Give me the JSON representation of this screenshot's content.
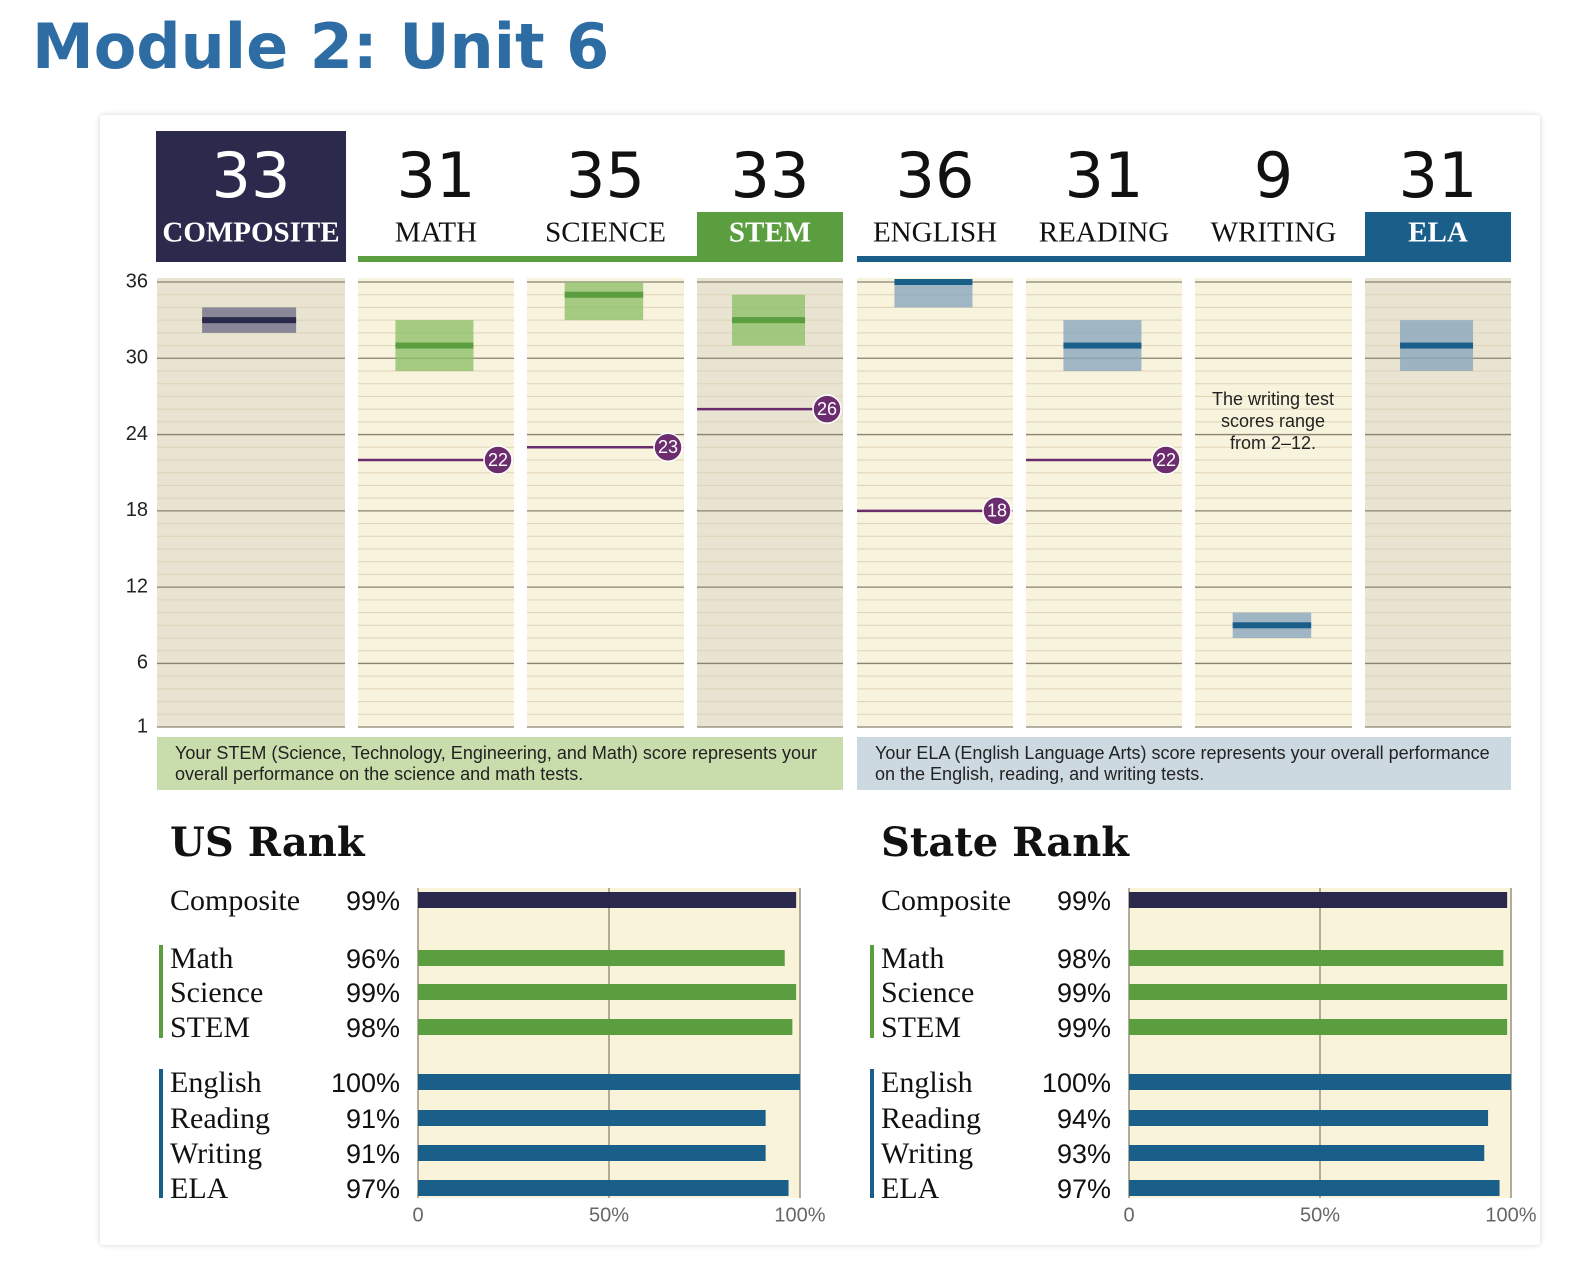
{
  "title": "Module 2: Unit 6",
  "chart_data": [
    {
      "type": "score-range",
      "categories": [
        "COMPOSITE",
        "MATH",
        "SCIENCE",
        "STEM",
        "ENGLISH",
        "READING",
        "WRITING",
        "ELA"
      ],
      "scores": [
        33,
        31,
        35,
        33,
        36,
        31,
        9,
        31
      ],
      "low": [
        32,
        29,
        33,
        31,
        34,
        29,
        8,
        29
      ],
      "high": [
        34,
        33,
        36,
        35,
        36,
        33,
        10,
        33
      ],
      "benchmarks": [
        null,
        22,
        23,
        26,
        18,
        22,
        null,
        null
      ],
      "colors": [
        "#2b2a4c",
        "#5a9e3f",
        "#5a9e3f",
        "#5a9e3f",
        "#1a5e8a",
        "#1a5e8a",
        "#1a5e8a",
        "#1a5e8a"
      ],
      "band_colors": [
        "#6f6e88",
        "#8fc06a",
        "#8fc06a",
        "#8fc06a",
        "#8aa6be",
        "#8aa6be",
        "#8aa6be",
        "#8aa6be"
      ],
      "highlight": [
        true,
        false,
        false,
        true,
        false,
        false,
        false,
        true
      ],
      "benchmark_color": "#6b2d6e",
      "ylim": [
        1,
        36
      ],
      "yticks": [
        1,
        6,
        12,
        18,
        24,
        30,
        36
      ],
      "annotation": "The writing test scores range from 2–12.",
      "notes": [
        "Your STEM (Science, Technology, Engineering, and Math) score represents your overall performance on the science and math tests.",
        "Your ELA (English Language Arts) score represents your overall performance on the English, reading, and writing tests."
      ]
    },
    {
      "type": "bar",
      "orientation": "horizontal",
      "title": "US Rank",
      "categories": [
        "Composite",
        "Math",
        "Science",
        "STEM",
        "English",
        "Reading",
        "Writing",
        "ELA"
      ],
      "values": [
        99,
        96,
        99,
        98,
        100,
        91,
        91,
        97
      ],
      "value_labels": [
        "99%",
        "96%",
        "99%",
        "98%",
        "100%",
        "91%",
        "91%",
        "97%"
      ],
      "colors": [
        "#2b2a4c",
        "#5a9e3f",
        "#5a9e3f",
        "#5a9e3f",
        "#1a5e8a",
        "#1a5e8a",
        "#1a5e8a",
        "#1a5e8a"
      ],
      "xlim": [
        0,
        100
      ],
      "xticks": [
        0,
        {
          "value": 50,
          "label": "50%"
        },
        {
          "value": 100,
          "label": "100%"
        }
      ],
      "grid": true
    },
    {
      "type": "bar",
      "orientation": "horizontal",
      "title": "State Rank",
      "categories": [
        "Composite",
        "Math",
        "Science",
        "STEM",
        "English",
        "Reading",
        "Writing",
        "ELA"
      ],
      "values": [
        99,
        98,
        99,
        99,
        100,
        94,
        93,
        97
      ],
      "value_labels": [
        "99%",
        "98%",
        "99%",
        "99%",
        "100%",
        "94%",
        "93%",
        "97%"
      ],
      "colors": [
        "#2b2a4c",
        "#5a9e3f",
        "#5a9e3f",
        "#5a9e3f",
        "#1a5e8a",
        "#1a5e8a",
        "#1a5e8a",
        "#1a5e8a"
      ],
      "xlim": [
        0,
        100
      ],
      "xticks": [
        0,
        {
          "value": 50,
          "label": "50%"
        },
        {
          "value": 100,
          "label": "100%"
        }
      ],
      "grid": true
    }
  ]
}
